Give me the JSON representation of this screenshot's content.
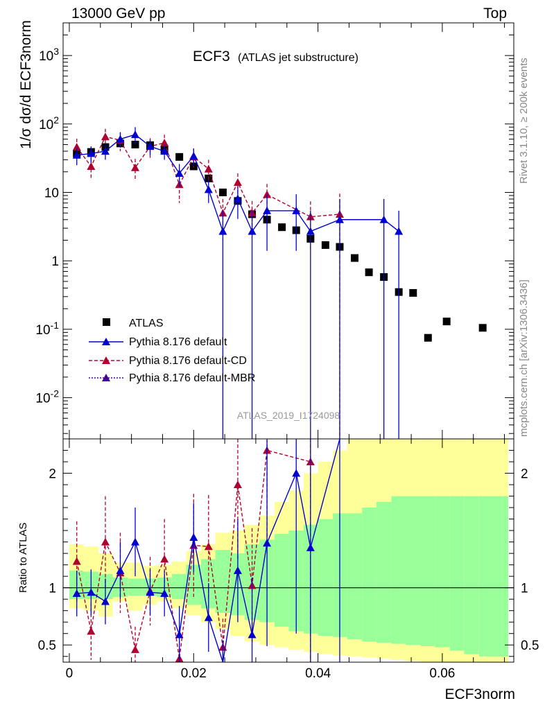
{
  "header": {
    "left": "13000 GeV pp",
    "right": "Top"
  },
  "main_title": "ECF3",
  "main_subtitle": "(ATLAS jet substructure)",
  "analysis_tag": "ATLAS_2019_I1724098",
  "side_text_top": "Rivet 3.1.10, ≥ 200k events",
  "side_text_bottom": "mcplots.cern.ch [arXiv:1306.3436]",
  "ylabel_top": "1/σ dσ/d ECF3norm",
  "ylabel_ratio": "Ratio to ATLAS",
  "xlabel": "ECF3norm",
  "colors": {
    "atlas": "#000000",
    "default": "#0000d0",
    "cd": "#b00030",
    "mbr": "#4000a0",
    "band_outer": "#ffff99",
    "band_inner": "#99ff99"
  },
  "chart_data": [
    {
      "type": "scatter",
      "panel": "main",
      "yscale": "log",
      "xlim": [
        -0.001,
        0.0715
      ],
      "ylim": [
        0.0025,
        3000
      ],
      "x_ticks": [
        0,
        0.02,
        0.04,
        0.06
      ],
      "y_tick_labels": [
        "10^-2",
        "10^-1",
        "1",
        "10",
        "10^2",
        "10^3"
      ],
      "legend": [
        "ATLAS",
        "Pythia 8.176 default",
        "Pythia 8.176 default-CD",
        "Pythia 8.176 default-MBR"
      ],
      "series": [
        {
          "name": "ATLAS",
          "x": [
            0.0012,
            0.0035,
            0.0058,
            0.0082,
            0.0106,
            0.013,
            0.0153,
            0.0177,
            0.02,
            0.0224,
            0.0247,
            0.0271,
            0.0294,
            0.0318,
            0.0342,
            0.0365,
            0.0388,
            0.0412,
            0.0435,
            0.0459,
            0.0482,
            0.0506,
            0.053,
            0.0553,
            0.0577,
            0.0607,
            0.0665
          ],
          "y": [
            37,
            39,
            46,
            52,
            50,
            49,
            42,
            33,
            24,
            16,
            10,
            7.5,
            4.8,
            4,
            3.1,
            2.8,
            2.1,
            1.7,
            1.6,
            1.1,
            0.68,
            0.58,
            0.35,
            0.34,
            0.075,
            0.13,
            0.105
          ]
        },
        {
          "name": "Pythia 8.176 default",
          "x": [
            0.0012,
            0.0035,
            0.0058,
            0.0082,
            0.0106,
            0.013,
            0.0153,
            0.0177,
            0.02,
            0.0224,
            0.0247,
            0.0271,
            0.0294,
            0.0318,
            0.0365,
            0.0388,
            0.0435,
            0.0506,
            0.053
          ],
          "y": [
            35,
            37,
            40,
            60,
            70,
            47,
            40,
            19,
            34,
            11,
            2.7,
            8.1,
            2.7,
            5.4,
            5.4,
            2.7,
            4,
            4,
            2.7
          ],
          "err": [
            10,
            10,
            10,
            15,
            20,
            12,
            10,
            7,
            10,
            4,
            2.7,
            4,
            2.7,
            4,
            4,
            2.7,
            4,
            4,
            2.7
          ]
        },
        {
          "name": "Pythia 8.176 default-CD",
          "x": [
            0.0012,
            0.0035,
            0.0058,
            0.0082,
            0.0106,
            0.013,
            0.0153,
            0.0177,
            0.02,
            0.0224,
            0.0247,
            0.0271,
            0.0294,
            0.0318,
            0.0388,
            0.0435
          ],
          "y": [
            46,
            24,
            65,
            58,
            23,
            47,
            53,
            13,
            33,
            22,
            5,
            14,
            5,
            9.3,
            4.4,
            4.8
          ],
          "err": [
            15,
            8,
            20,
            18,
            8,
            15,
            17,
            6,
            10,
            8,
            3,
            5,
            2.5,
            4,
            3,
            4.8
          ]
        },
        {
          "name": "Pythia 8.176 default-MBR",
          "x": [],
          "y": []
        }
      ]
    },
    {
      "type": "line",
      "panel": "ratio",
      "xlim": [
        -0.001,
        0.0715
      ],
      "ylim": [
        0.35,
        2.3
      ],
      "y_ticks": [
        0.5,
        1,
        2
      ],
      "reference": 1,
      "band_edges": [
        0,
        0.0023,
        0.0047,
        0.007,
        0.0094,
        0.0118,
        0.0141,
        0.0165,
        0.0188,
        0.0212,
        0.0235,
        0.0259,
        0.0282,
        0.0306,
        0.033,
        0.0353,
        0.0377,
        0.04,
        0.0424,
        0.0447,
        0.0471,
        0.0494,
        0.0518,
        0.0541,
        0.0565,
        0.0588,
        0.0612,
        0.0635,
        0.0659,
        0.0706
      ],
      "band_outer_low": [
        0.82,
        0.8,
        0.75,
        0.88,
        0.8,
        0.85,
        0.88,
        0.82,
        0.76,
        0.7,
        0.64,
        0.58,
        0.53,
        0.5,
        0.48,
        0.46,
        0.44,
        0.42,
        0.41,
        0.4,
        0.39,
        0.38,
        0.37,
        0.36,
        0.35,
        0.35,
        0.35,
        0.35,
        0.35
      ],
      "band_outer_high": [
        1.38,
        1.36,
        1.3,
        1.22,
        1.22,
        1.19,
        1.2,
        1.23,
        1.32,
        1.38,
        1.48,
        1.5,
        1.55,
        1.63,
        1.75,
        1.85,
        2.0,
        2.1,
        2.2,
        2.3,
        2.35,
        2.3,
        2.3,
        2.3,
        2.3,
        2.3,
        2.3,
        2.3,
        2.3
      ],
      "band_inner_low": [
        0.9,
        0.9,
        0.9,
        0.92,
        0.93,
        0.93,
        0.92,
        0.9,
        0.85,
        0.82,
        0.78,
        0.76,
        0.72,
        0.7,
        0.66,
        0.62,
        0.6,
        0.58,
        0.57,
        0.55,
        0.53,
        0.52,
        0.51,
        0.5,
        0.49,
        0.48,
        0.45,
        0.42,
        0.4
      ],
      "band_inner_high": [
        1.15,
        1.14,
        1.12,
        1.09,
        1.08,
        1.08,
        1.09,
        1.12,
        1.2,
        1.25,
        1.33,
        1.3,
        1.38,
        1.42,
        1.47,
        1.5,
        1.55,
        1.6,
        1.65,
        1.65,
        1.7,
        1.75,
        1.8,
        1.8,
        1.8,
        1.8,
        1.8,
        1.8,
        1.8
      ],
      "series": [
        {
          "name": "Pythia 8.176 default",
          "x": [
            0.0012,
            0.0035,
            0.0058,
            0.0082,
            0.0106,
            0.013,
            0.0153,
            0.0177,
            0.02,
            0.0224,
            0.0247,
            0.0271,
            0.0294,
            0.0318,
            0.0365,
            0.0388,
            0.0435
          ],
          "y": [
            0.95,
            0.96,
            0.88,
            1.15,
            1.4,
            0.96,
            0.95,
            0.59,
            1.44,
            0.74,
            0.27,
            1.15,
            0.59,
            1.39,
            2.0,
            1.35,
            2.5
          ],
          "err": [
            0.2,
            0.2,
            0.2,
            0.25,
            0.3,
            0.2,
            0.2,
            0.25,
            0.3,
            0.3,
            0.27,
            0.45,
            0.5,
            0.9,
            1.4,
            1.35,
            2.5
          ]
        },
        {
          "name": "Pythia 8.176 default-CD",
          "x": [
            0.0012,
            0.0035,
            0.0058,
            0.0082,
            0.0106,
            0.013,
            0.0153,
            0.0177,
            0.02,
            0.0224,
            0.0247,
            0.0271,
            0.0294,
            0.0318,
            0.0388
          ],
          "y": [
            1.23,
            0.62,
            1.4,
            1.13,
            0.46,
            0.97,
            1.25,
            0.38,
            1.37,
            1.36,
            0.48,
            1.9,
            1.02,
            2.2,
            2.1
          ],
          "err": [
            0.35,
            0.25,
            0.4,
            0.35,
            0.2,
            0.3,
            0.35,
            0.25,
            0.45,
            0.45,
            0.25,
            0.65,
            0.5,
            0.9,
            2.1
          ]
        }
      ]
    }
  ]
}
